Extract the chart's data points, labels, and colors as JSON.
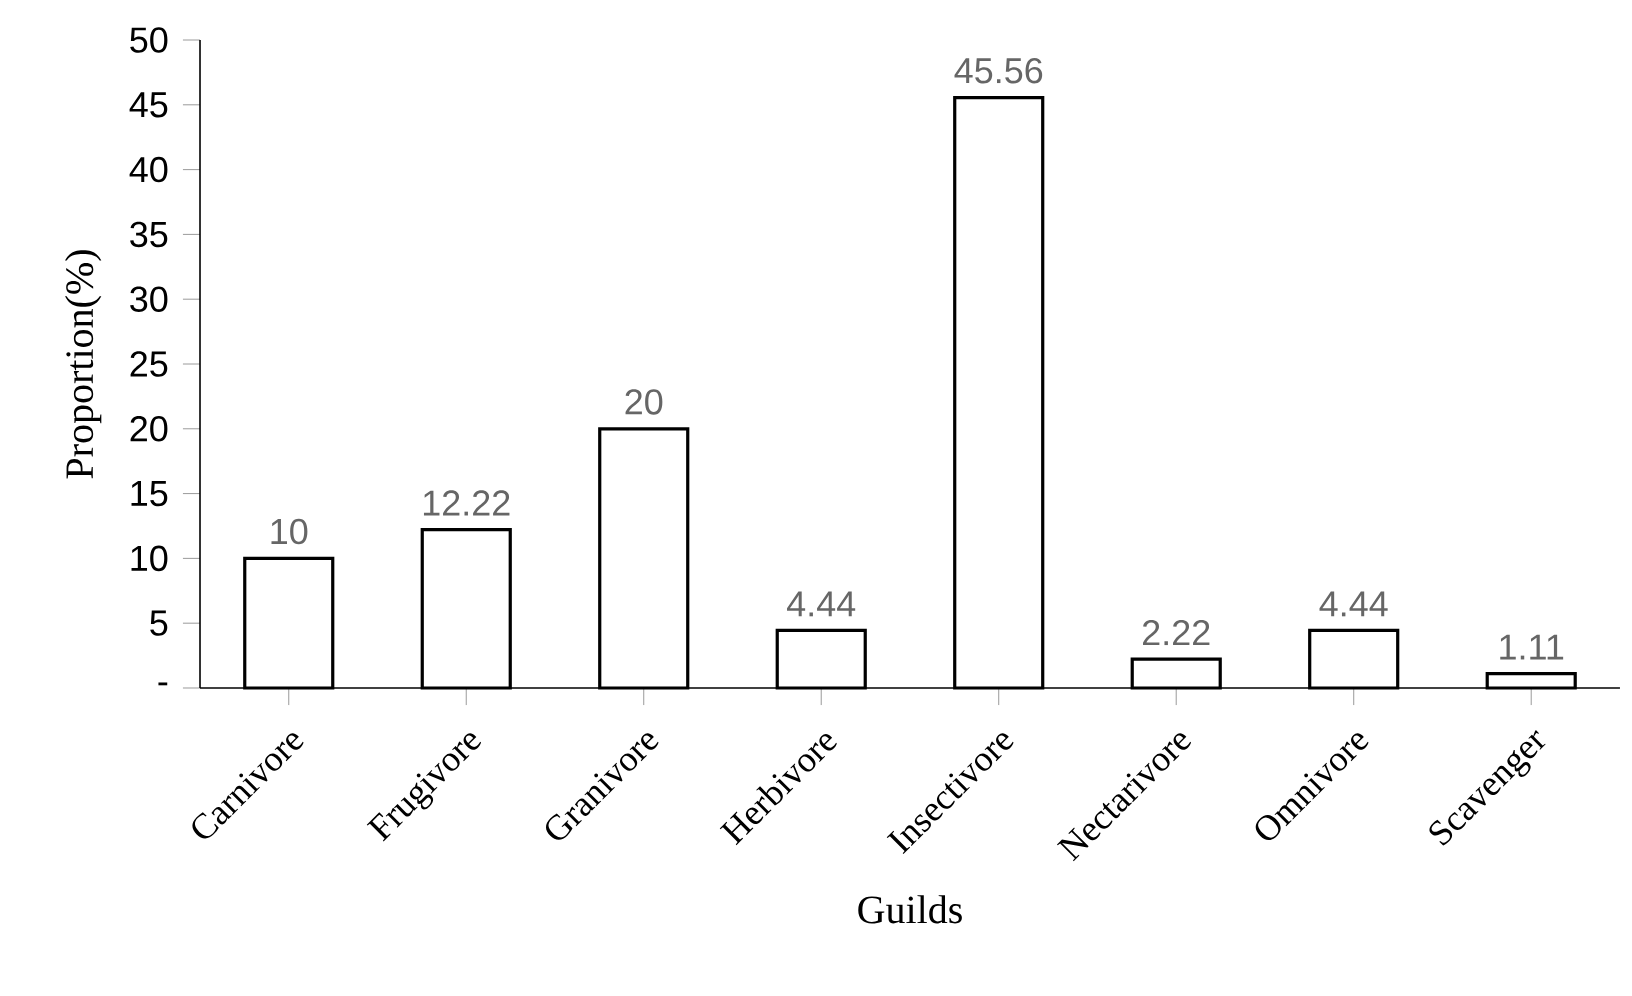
{
  "chart_data": {
    "type": "bar",
    "xlabel": "Guilds",
    "ylabel": "Proportion(%)",
    "categories": [
      "Carnivore",
      "Frugivore",
      "Granivore",
      "Herbivore",
      "Insectivore",
      "Nectarivore",
      "Omnivore",
      "Scavenger"
    ],
    "values": [
      10,
      12.22,
      20,
      4.44,
      45.56,
      2.22,
      4.44,
      1.11
    ],
    "color": "#000000",
    "data_labels": true,
    "ylim": [
      0,
      50
    ],
    "yticks": [
      {
        "value": 0,
        "label": "-"
      },
      5,
      10,
      15,
      20,
      25,
      30,
      35,
      40,
      45,
      50
    ]
  }
}
